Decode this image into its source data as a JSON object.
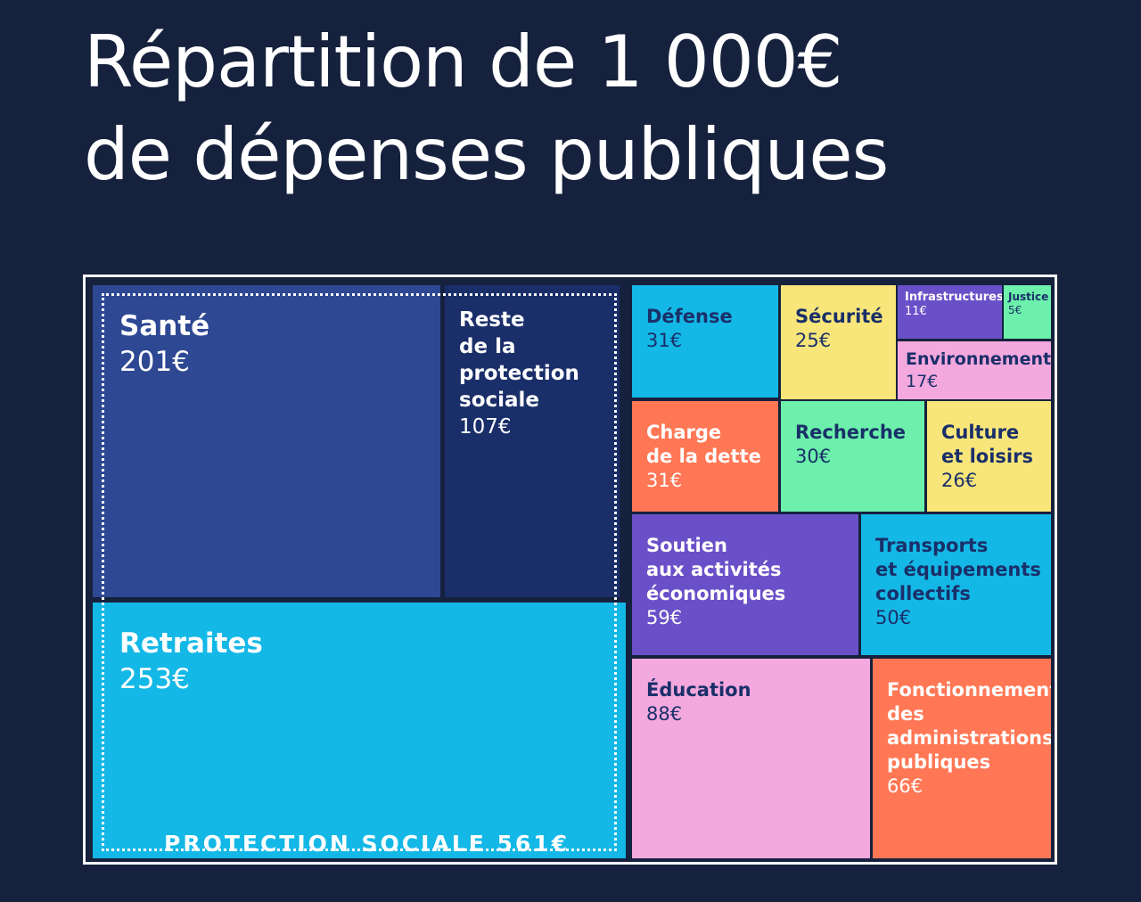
{
  "title_lines": [
    "Répartition de 1 000€",
    "de dépenses publiques"
  ],
  "chart_data": {
    "type": "treemap",
    "total": 1000,
    "unit": "€",
    "groups": [
      {
        "name": "PROTECTION SOCIALE",
        "value": 561,
        "label": "PROTECTION SOCIALE 561€",
        "items": [
          "Santé",
          "Reste de la protection sociale",
          "Retraites"
        ]
      }
    ],
    "items": [
      {
        "name": "Santé",
        "value": 201,
        "value_label": "201€",
        "color": "#2e4893"
      },
      {
        "name": "Reste\nde la\nprotection\nsociale",
        "value": 107,
        "value_label": "107€",
        "color": "#1a2f69"
      },
      {
        "name": "Retraites",
        "value": 253,
        "value_label": "253€",
        "color": "#14b8e6"
      },
      {
        "name": "Défense",
        "value": 31,
        "value_label": "31€",
        "color": "#14b8e6"
      },
      {
        "name": "Sécurité",
        "value": 25,
        "value_label": "25€",
        "color": "#f8e67a"
      },
      {
        "name": "Infrastructures",
        "value": 11,
        "value_label": "11€",
        "color": "#6a50c8"
      },
      {
        "name": "Justice",
        "value": 5,
        "value_label": "5€",
        "color": "#6cf0ab"
      },
      {
        "name": "Environnement",
        "value": 17,
        "value_label": "17€",
        "color": "#f3a8de"
      },
      {
        "name": "Charge\nde la dette",
        "value": 31,
        "value_label": "31€",
        "color": "#ff7755"
      },
      {
        "name": "Recherche",
        "value": 30,
        "value_label": "30€",
        "color": "#6cf0ab"
      },
      {
        "name": "Culture\net loisirs",
        "value": 26,
        "value_label": "26€",
        "color": "#f8e67a"
      },
      {
        "name": "Soutien\naux activités\néconomiques",
        "value": 59,
        "value_label": "59€",
        "color": "#6a50c8"
      },
      {
        "name": "Transports\net équipements\ncollectifs",
        "value": 50,
        "value_label": "50€",
        "color": "#14b8e6"
      },
      {
        "name": "Éducation",
        "value": 88,
        "value_label": "88€",
        "color": "#f3a8de"
      },
      {
        "name": "Fonctionnement\ndes\nadministrations\npubliques",
        "value": 66,
        "value_label": "66€",
        "color": "#ff7755"
      }
    ]
  }
}
